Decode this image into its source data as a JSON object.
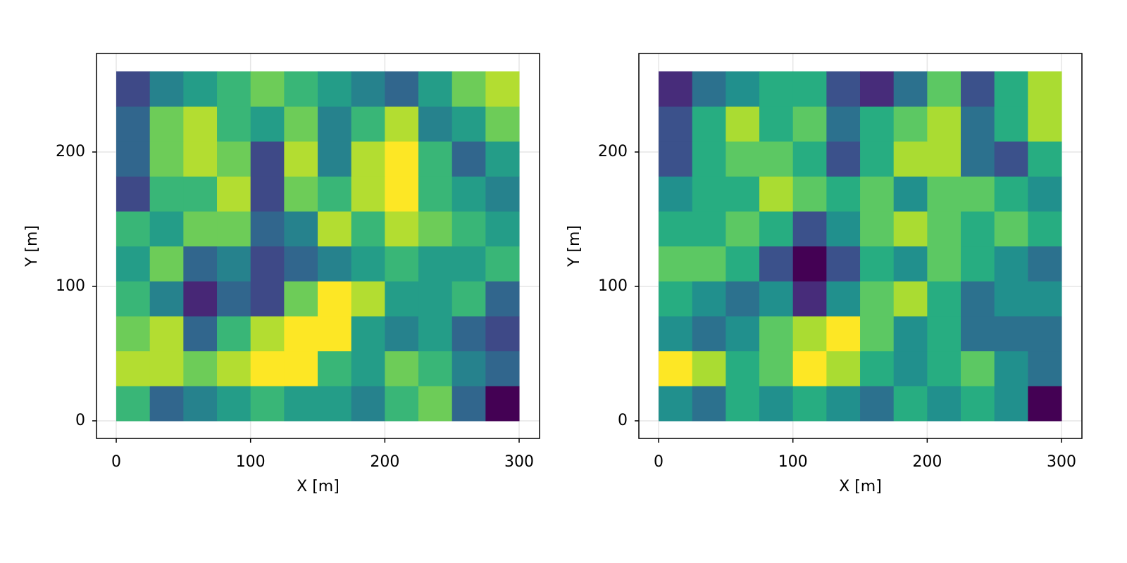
{
  "chart_data": [
    {
      "type": "heatmap",
      "xlabel": "X [m]",
      "ylabel": "Y [m]",
      "colormap": "viridis",
      "grid": true,
      "xlim": [
        -14.7,
        315.2
      ],
      "ylim": [
        -13.1,
        273.3
      ],
      "xticks": [
        0,
        100,
        200,
        300
      ],
      "yticks": [
        0,
        100,
        200
      ],
      "x": [
        12.5,
        37.5,
        62.5,
        87.5,
        112.5,
        137.5,
        162.5,
        187.5,
        212.5,
        237.5,
        262.5,
        287.5
      ],
      "y": [
        13,
        39,
        65,
        91,
        117,
        143,
        169,
        195,
        221,
        247
      ],
      "z": [
        [
          0.6,
          0.3,
          0.4,
          0.5,
          0.6,
          0.5,
          0.5,
          0.4,
          0.6,
          0.7,
          0.3,
          0.0
        ],
        [
          0.8,
          0.8,
          0.7,
          0.8,
          0.9,
          0.9,
          0.6,
          0.5,
          0.7,
          0.6,
          0.4,
          0.3
        ],
        [
          0.7,
          0.8,
          0.3,
          0.6,
          0.8,
          0.9,
          0.9,
          0.5,
          0.4,
          0.5,
          0.3,
          0.2
        ],
        [
          0.6,
          0.4,
          0.1,
          0.3,
          0.2,
          0.7,
          0.9,
          0.8,
          0.5,
          0.5,
          0.6,
          0.3
        ],
        [
          0.5,
          0.7,
          0.3,
          0.4,
          0.2,
          0.3,
          0.4,
          0.5,
          0.6,
          0.5,
          0.5,
          0.6
        ],
        [
          0.6,
          0.5,
          0.7,
          0.7,
          0.3,
          0.4,
          0.8,
          0.6,
          0.8,
          0.7,
          0.6,
          0.5
        ],
        [
          0.2,
          0.6,
          0.6,
          0.8,
          0.2,
          0.7,
          0.6,
          0.8,
          0.9,
          0.6,
          0.5,
          0.4
        ],
        [
          0.3,
          0.7,
          0.8,
          0.7,
          0.2,
          0.8,
          0.4,
          0.8,
          0.9,
          0.6,
          0.3,
          0.5
        ],
        [
          0.3,
          0.7,
          0.8,
          0.6,
          0.5,
          0.7,
          0.4,
          0.6,
          0.8,
          0.4,
          0.5,
          0.7
        ],
        [
          0.2,
          0.4,
          0.5,
          0.6,
          0.7,
          0.6,
          0.5,
          0.4,
          0.3,
          0.5,
          0.7,
          0.8
        ]
      ]
    },
    {
      "type": "heatmap",
      "xlabel": "X [m]",
      "ylabel": "Y [m]",
      "colormap": "viridis",
      "grid": true,
      "xlim": [
        -14.7,
        315.2
      ],
      "ylim": [
        -13.1,
        273.3
      ],
      "xticks": [
        0,
        100,
        200,
        300
      ],
      "yticks": [
        0,
        100,
        200
      ],
      "x": [
        12.5,
        37.5,
        62.5,
        87.5,
        112.5,
        137.5,
        162.5,
        187.5,
        212.5,
        237.5,
        262.5,
        287.5
      ],
      "y": [
        13,
        39,
        65,
        91,
        117,
        143,
        169,
        195,
        221,
        247
      ],
      "z": [
        [
          0.5,
          0.4,
          0.6,
          0.5,
          0.6,
          0.5,
          0.4,
          0.6,
          0.5,
          0.6,
          0.5,
          0.1
        ],
        [
          0.9,
          0.8,
          0.6,
          0.7,
          0.9,
          0.8,
          0.6,
          0.5,
          0.6,
          0.7,
          0.5,
          0.4
        ],
        [
          0.5,
          0.4,
          0.5,
          0.7,
          0.8,
          0.9,
          0.7,
          0.5,
          0.6,
          0.4,
          0.4,
          0.4
        ],
        [
          0.6,
          0.5,
          0.4,
          0.5,
          0.2,
          0.5,
          0.7,
          0.8,
          0.6,
          0.4,
          0.5,
          0.5
        ],
        [
          0.7,
          0.7,
          0.6,
          0.3,
          0.1,
          0.3,
          0.6,
          0.5,
          0.7,
          0.6,
          0.5,
          0.4
        ],
        [
          0.6,
          0.6,
          0.7,
          0.6,
          0.3,
          0.5,
          0.7,
          0.8,
          0.7,
          0.6,
          0.7,
          0.6
        ],
        [
          0.5,
          0.6,
          0.6,
          0.8,
          0.7,
          0.6,
          0.7,
          0.5,
          0.7,
          0.7,
          0.6,
          0.5
        ],
        [
          0.3,
          0.6,
          0.7,
          0.7,
          0.6,
          0.3,
          0.6,
          0.8,
          0.8,
          0.4,
          0.3,
          0.6
        ],
        [
          0.3,
          0.6,
          0.8,
          0.6,
          0.7,
          0.4,
          0.6,
          0.7,
          0.8,
          0.4,
          0.6,
          0.8
        ],
        [
          0.2,
          0.4,
          0.5,
          0.6,
          0.6,
          0.3,
          0.2,
          0.4,
          0.7,
          0.3,
          0.6,
          0.8
        ]
      ]
    }
  ]
}
